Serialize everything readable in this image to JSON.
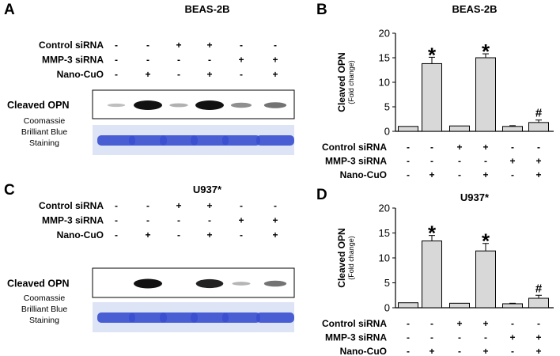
{
  "panels": {
    "A": {
      "letter": "A",
      "cell_line": "BEAS-2B",
      "conditions": [
        {
          "label": "Control siRNA",
          "marks": [
            "-",
            "-",
            "+",
            "+",
            "-",
            "-"
          ]
        },
        {
          "label": "MMP-3 siRNA",
          "marks": [
            "-",
            "-",
            "-",
            "-",
            "+",
            "+"
          ]
        },
        {
          "label": "Nano-CuO",
          "marks": [
            "-",
            "+",
            "-",
            "+",
            "-",
            "+"
          ]
        }
      ],
      "blot_label": "Cleaved OPN",
      "stain_label": [
        "Coomassie",
        "Brilliant Blue",
        "Staining"
      ],
      "band_intensity": [
        0.03,
        1.0,
        0.1,
        1.0,
        0.3,
        0.45
      ]
    },
    "C": {
      "letter": "C",
      "cell_line": "U937*",
      "conditions": [
        {
          "label": "Control siRNA",
          "marks": [
            "-",
            "-",
            "+",
            "+",
            "-",
            "-"
          ]
        },
        {
          "label": "MMP-3 siRNA",
          "marks": [
            "-",
            "-",
            "-",
            "-",
            "+",
            "+"
          ]
        },
        {
          "label": "Nano-CuO",
          "marks": [
            "-",
            "+",
            "-",
            "+",
            "-",
            "+"
          ]
        }
      ],
      "blot_label": "Cleaved OPN",
      "stain_label": [
        "Coomassie",
        "Brilliant Blue",
        "Staining"
      ],
      "band_intensity": [
        0.0,
        1.0,
        0.0,
        0.9,
        0.08,
        0.45
      ]
    }
  },
  "colors": {
    "bar_fill": "#d8d8d8",
    "stain_background": "#dde4f6",
    "stain_band": "#3a4fd0",
    "blot_band": "#111111"
  },
  "chart_data": [
    {
      "panel": "B",
      "type": "bar",
      "title": "BEAS-2B",
      "ylabel": "Cleaved OPN",
      "ylabel_sub": "(Fold change)",
      "ylim": [
        0,
        20
      ],
      "yticks": [
        "0",
        "5",
        "10",
        "15",
        "20"
      ],
      "values": [
        1.0,
        13.8,
        1.1,
        15.0,
        1.0,
        1.8
      ],
      "errors": [
        0.0,
        1.3,
        0.0,
        0.8,
        0.15,
        0.5
      ],
      "annotations": [
        "",
        "*",
        "",
        "*",
        "",
        "#"
      ],
      "conditions": [
        {
          "label": "Control siRNA",
          "marks": [
            "-",
            "-",
            "+",
            "+",
            "-",
            "-"
          ]
        },
        {
          "label": "MMP-3 siRNA",
          "marks": [
            "-",
            "-",
            "-",
            "-",
            "+",
            "+"
          ]
        },
        {
          "label": "Nano-CuO",
          "marks": [
            "-",
            "+",
            "-",
            "+",
            "-",
            "+"
          ]
        }
      ]
    },
    {
      "panel": "D",
      "type": "bar",
      "title": "U937*",
      "ylabel": "Cleaved OPN",
      "ylabel_sub": "(Fold change)",
      "ylim": [
        0,
        20
      ],
      "yticks": [
        "0",
        "5",
        "10",
        "15",
        "20"
      ],
      "values": [
        1.0,
        13.4,
        0.9,
        11.4,
        0.8,
        1.9
      ],
      "errors": [
        0.0,
        1.1,
        0.0,
        1.5,
        0.1,
        0.6
      ],
      "annotations": [
        "",
        "*",
        "",
        "*",
        "",
        "#"
      ],
      "conditions": [
        {
          "label": "Control siRNA",
          "marks": [
            "-",
            "-",
            "+",
            "+",
            "-",
            "-"
          ]
        },
        {
          "label": "MMP-3 siRNA",
          "marks": [
            "-",
            "-",
            "-",
            "-",
            "+",
            "+"
          ]
        },
        {
          "label": "Nano-CuO",
          "marks": [
            "-",
            "+",
            "-",
            "+",
            "-",
            "+"
          ]
        }
      ]
    }
  ],
  "chart_letters": [
    "B",
    "D"
  ]
}
